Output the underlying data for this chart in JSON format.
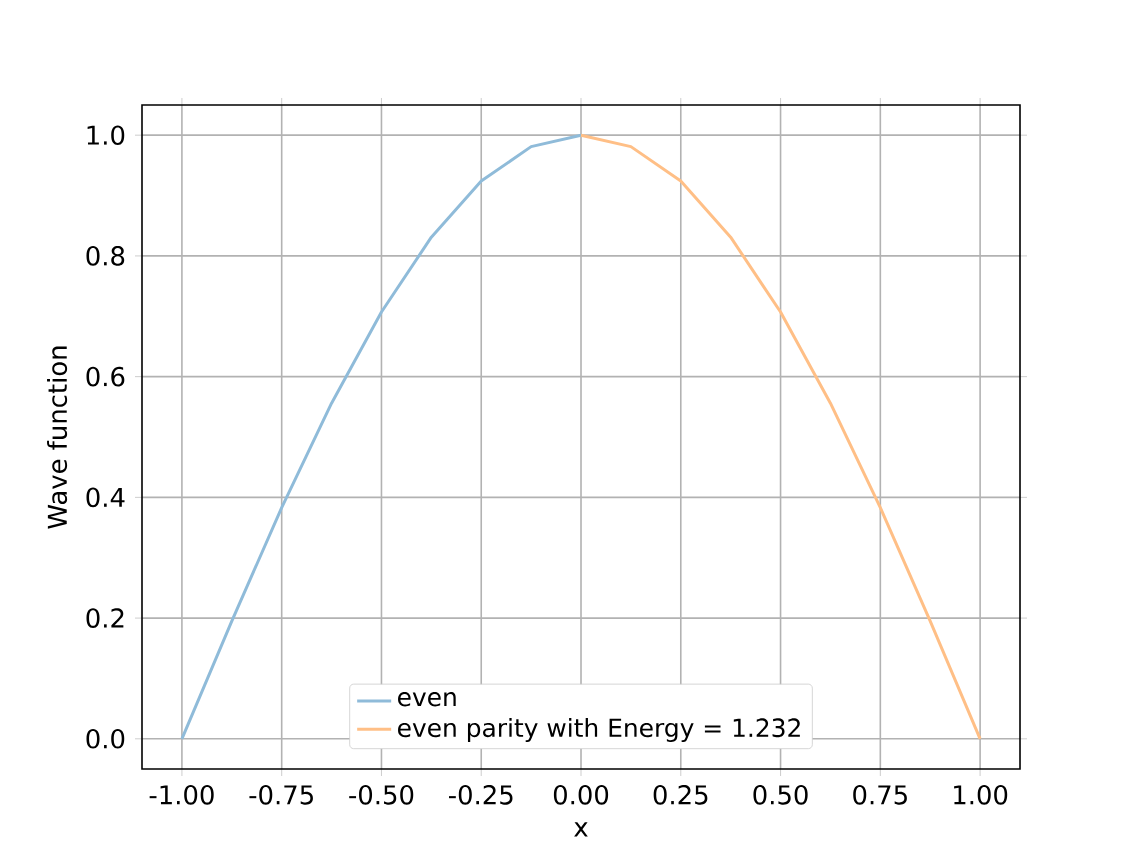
{
  "chart_data": {
    "type": "line",
    "xlabel": "x",
    "ylabel": "Wave function",
    "series": [
      {
        "name": "even",
        "color": "#8fbbd9",
        "x": [
          -1.0,
          -0.875,
          -0.75,
          -0.625,
          -0.5,
          -0.375,
          -0.25,
          -0.125,
          0.0
        ],
        "values": [
          0.0,
          0.195,
          0.383,
          0.556,
          0.707,
          0.831,
          0.924,
          0.981,
          1.0
        ]
      },
      {
        "name": "even parity with Energy = 1.232",
        "color": "#ffbf86",
        "x": [
          0.0,
          0.125,
          0.25,
          0.375,
          0.5,
          0.625,
          0.75,
          0.875,
          1.0
        ],
        "values": [
          1.0,
          0.981,
          0.924,
          0.831,
          0.707,
          0.556,
          0.383,
          0.195,
          0.0
        ]
      }
    ],
    "xlim": [
      -1.1,
      1.1
    ],
    "ylim": [
      -0.05,
      1.05
    ],
    "xticks": [
      {
        "value": -1.0,
        "label": "-1.00"
      },
      {
        "value": -0.75,
        "label": "-0.75"
      },
      {
        "value": -0.5,
        "label": "-0.50"
      },
      {
        "value": -0.25,
        "label": "-0.25"
      },
      {
        "value": 0.0,
        "label": "0.00"
      },
      {
        "value": 0.25,
        "label": "0.25"
      },
      {
        "value": 0.5,
        "label": "0.50"
      },
      {
        "value": 0.75,
        "label": "0.75"
      },
      {
        "value": 1.0,
        "label": "1.00"
      }
    ],
    "yticks": [
      {
        "value": 0.0,
        "label": "0.0"
      },
      {
        "value": 0.2,
        "label": "0.2"
      },
      {
        "value": 0.4,
        "label": "0.4"
      },
      {
        "value": 0.6,
        "label": "0.6"
      },
      {
        "value": 0.8,
        "label": "0.8"
      },
      {
        "value": 1.0,
        "label": "1.0"
      }
    ],
    "grid": true,
    "legend": "bottom"
  }
}
